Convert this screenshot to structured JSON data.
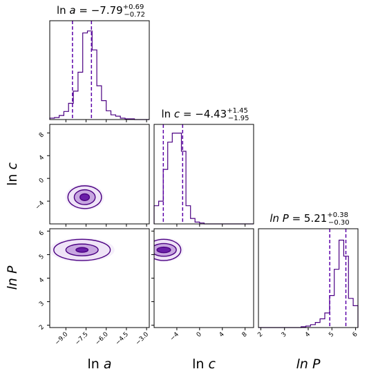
{
  "colors": {
    "main": "#4b0082",
    "quantile": "#5b00a8",
    "fill_light": "#efe4f7",
    "fill_mid": "#c7a6e0",
    "fill_dark": "#6a1fa8"
  },
  "chart_data": {
    "type": "corner",
    "parameters": [
      {
        "key": "lna",
        "axis_label_prefix": "ln ",
        "axis_label_var": "a",
        "title_prefix": "ln ",
        "title_var": "a",
        "title_value": " = −7.79",
        "title_upper": "+0.69",
        "title_lower": "−0.72",
        "range": [
          -10.2,
          -2.8
        ],
        "ticks": [
          -9.0,
          -7.5,
          -6.0,
          -4.5,
          -3.0
        ],
        "tick_labels": [
          "−9.0",
          "−7.5",
          "−6.0",
          "−4.5",
          "−3.0"
        ],
        "quantiles": [
          -8.51,
          -7.1
        ],
        "hist": {
          "edges": [
            -10.2,
            -9.85,
            -9.5,
            -9.15,
            -8.8,
            -8.45,
            -8.1,
            -7.75,
            -7.4,
            -7.05,
            -6.7,
            -6.35,
            -6.0,
            -5.65,
            -5.3,
            -4.95,
            -4.6,
            -4.25,
            -3.9,
            -3.55,
            -3.2,
            -2.8
          ],
          "counts": [
            2,
            3,
            6,
            12,
            24,
            42,
            70,
            128,
            131,
            103,
            50,
            28,
            13,
            7,
            5,
            2,
            1,
            1,
            0,
            0,
            0
          ],
          "max": 140
        }
      },
      {
        "key": "lnc",
        "axis_label_prefix": "ln ",
        "axis_label_var": "c",
        "title_prefix": "ln ",
        "title_var": "c",
        "title_value": " = −4.43",
        "title_upper": "+1.45",
        "title_lower": "−1.95",
        "range": [
          -8.0,
          9.5
        ],
        "ticks": [
          -4,
          0,
          4,
          8
        ],
        "tick_labels": [
          "−4",
          "0",
          "4",
          "8"
        ],
        "quantiles": [
          -6.38,
          -2.98
        ],
        "hist": {
          "edges": [
            -8.0,
            -7.2,
            -6.4,
            -5.6,
            -4.8,
            -4.0,
            -3.2,
            -2.4,
            -1.6,
            -0.8,
            0.0,
            0.8,
            1.6,
            2.4,
            3.2,
            4.0,
            4.8,
            5.6,
            6.4,
            7.2,
            8.0,
            9.5
          ],
          "counts": [
            20,
            25,
            60,
            90,
            100,
            100,
            80,
            20,
            6,
            2,
            1,
            0,
            0,
            0,
            0,
            0,
            0,
            0,
            0,
            0,
            0
          ],
          "max": 105
        }
      },
      {
        "key": "lnP",
        "axis_label_prefix": "",
        "axis_label_var": "ln P",
        "title_prefix": "",
        "title_var": "ln P",
        "title_value": " = 5.21",
        "title_upper": "+0.38",
        "title_lower": "−0.30",
        "range": [
          1.9,
          6.1
        ],
        "ticks": [
          2,
          3,
          4,
          5,
          6
        ],
        "tick_labels": [
          "2",
          "3",
          "4",
          "5",
          "6"
        ],
        "quantiles": [
          4.91,
          5.59
        ],
        "hist": {
          "edges": [
            1.9,
            2.1,
            2.3,
            2.5,
            2.7,
            2.9,
            3.1,
            3.3,
            3.5,
            3.7,
            3.9,
            4.1,
            4.3,
            4.5,
            4.7,
            4.9,
            5.1,
            5.3,
            5.5,
            5.7,
            5.9,
            6.1
          ],
          "counts": [
            0,
            0,
            0,
            0,
            0,
            0,
            0,
            0,
            0,
            1,
            2,
            4,
            7,
            12,
            20,
            44,
            80,
            120,
            98,
            40,
            30
          ],
          "max": 130
        }
      }
    ],
    "contours_2d": [
      {
        "x": "lna",
        "y": "lnc",
        "center": [
          -7.6,
          -3.3
        ],
        "levels": [
          {
            "rx": 0.35,
            "ry": 0.6
          },
          {
            "rx": 0.78,
            "ry": 1.3
          },
          {
            "rx": 1.25,
            "ry": 2.0
          }
        ]
      },
      {
        "x": "lna",
        "y": "lnP",
        "center": [
          -7.8,
          5.2
        ],
        "levels": [
          {
            "rx": 0.45,
            "ry": 0.1
          },
          {
            "rx": 1.2,
            "ry": 0.25
          },
          {
            "rx": 2.1,
            "ry": 0.45
          }
        ]
      },
      {
        "x": "lnc",
        "y": "lnP",
        "center": [
          -6.3,
          5.2
        ],
        "levels": [
          {
            "rx": 1.2,
            "ry": 0.12
          },
          {
            "rx": 2.2,
            "ry": 0.27
          },
          {
            "rx": 3.0,
            "ry": 0.45
          }
        ]
      }
    ]
  }
}
